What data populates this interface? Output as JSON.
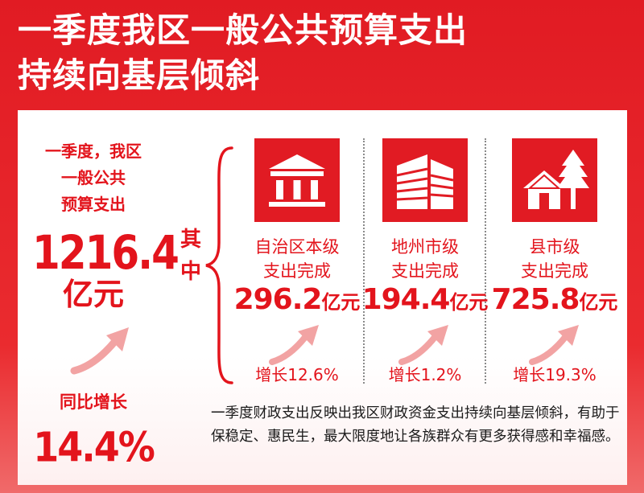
{
  "title": {
    "line1": "一季度我区一般公共预算支出",
    "line2": "持续向基层倾斜"
  },
  "summary": {
    "label_line1": "一季度，我区",
    "label_line2": "一般公共",
    "label_line3": "预算支出",
    "amount": "1216.4",
    "unit": "亿元",
    "yoy_label": "同比增长",
    "yoy_value": "14.4%"
  },
  "breakdown_label": {
    "char1": "其",
    "char2": "中"
  },
  "columns": [
    {
      "icon": "government-building-icon",
      "line1": "自治区本级",
      "line2": "支出完成",
      "amount": "296.2",
      "unit": "亿元",
      "growth": "增长12.6%"
    },
    {
      "icon": "office-buildings-icon",
      "line1": "地州市级",
      "line2": "支出完成",
      "amount": "194.4",
      "unit": "亿元",
      "growth": "增长1.2%"
    },
    {
      "icon": "house-with-trees-icon",
      "line1": "县市级",
      "line2": "支出完成",
      "amount": "725.8",
      "unit": "亿元",
      "growth": "增长19.3%"
    }
  ],
  "note": "一季度财政支出反映出我区财政资金支出持续向基层倾斜，有助于保稳定、惠民生，最大限度地让各族群众有更多获得感和幸福感。",
  "colors": {
    "brand_red": "#e11b23",
    "text_red": "#e3141c",
    "arrow_pink": "#f2a3a3"
  }
}
